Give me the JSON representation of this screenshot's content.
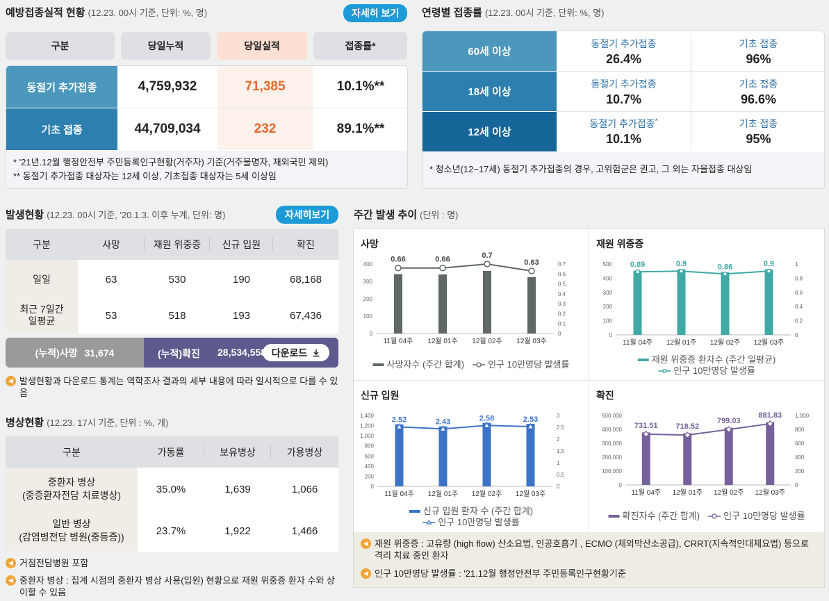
{
  "vacc": {
    "title": "예방접종실적 현황",
    "sub": "(12.23. 00시 기준, 단위: %, 명)",
    "more": "자세히 보기",
    "headers": [
      "구분",
      "당일누적",
      "당일실적",
      "접종률*"
    ],
    "rows": [
      {
        "label": "동절기 추가접종",
        "cum": "4,759,932",
        "today": "71,385",
        "rate": "10.1%**"
      },
      {
        "label": "기초 접종",
        "cum": "44,709,034",
        "today": "232",
        "rate": "89.1%**"
      }
    ],
    "notes": [
      "* '21년.12월 행정안전부 주민등록인구현황(거주자) 기준(거주불명자, 재외국민 제외)",
      "** 동절기 추가접종 대상자는 12세 이상, 기초접종 대상자는 5세 이상임"
    ]
  },
  "age": {
    "title": "연령별 접종률",
    "sub": "(12.23. 00시 기준, 단위: %, 명)",
    "rows": [
      {
        "label": "60세 이상",
        "a_label": "동절기 추가접종",
        "a_val": "26.4%",
        "b_label": "기초 접종",
        "b_val": "96%"
      },
      {
        "label": "18세 이상",
        "a_label": "동절기 추가접종",
        "a_val": "10.7%",
        "b_label": "기초 접종",
        "b_val": "96.6%"
      },
      {
        "label": "12세 이상",
        "a_label": "동절기 추가접종",
        "a_sup": "*",
        "a_val": "10.1%",
        "b_label": "기초 접종",
        "b_val": "95%"
      }
    ],
    "note": "* 청소년(12~17세) 동절기 추가접종의 경우, 고위험군은 권고, 그 외는 자율접종 대상임"
  },
  "occ": {
    "title": "발생현황",
    "sub": "(12.23. 00시 기준, '20.1.3. 이후 누계, 단위: 명)",
    "more": "자세히보기",
    "headers": [
      "구분",
      "사망",
      "재원 위중증",
      "신규 입원",
      "확진"
    ],
    "rows": [
      {
        "label": "일일",
        "v": [
          "63",
          "530",
          "190",
          "68,168"
        ]
      },
      {
        "label": "최근 7일간\n일평균",
        "v": [
          "53",
          "518",
          "193",
          "67,436"
        ]
      }
    ],
    "cum_death_label": "(누적)사망",
    "cum_death": "31,674",
    "cum_conf_label": "(누적)확진",
    "cum_conf": "28,534,558",
    "download": "다운로드",
    "note": "발생현황과 다운로드 통계는 역학조사 결과의 세부 내용에 따라 일시적으로 다를 수 있음"
  },
  "beds": {
    "title": "병상현황",
    "sub": "(12.23. 17시 기준, 단위 : %, 개)",
    "headers": [
      "구분",
      "가동률",
      "보유병상",
      "가용병상"
    ],
    "rows": [
      {
        "label": "중환자 병상\n(중증환자전담 치료병상)",
        "v": [
          "35.0%",
          "1,639",
          "1,066"
        ]
      },
      {
        "label": "일반 병상\n(감염병전담 병원(중등증))",
        "v": [
          "23.7%",
          "1,922",
          "1,466"
        ]
      }
    ],
    "notes": [
      "거점전담병원 포함",
      "중환자 병상 : 집계 시점의 중환자 병상 사용(입원) 현황으로 재원 위중증 환자 수와 상이할 수 있음"
    ]
  },
  "weekly": {
    "title": "주간 발생 추이",
    "sub": "(단위 : 명)",
    "notes": [
      "재원 위중증 : 고유량 (high flow) 산소요법, 인공호흡기 , ECMO (체외막산소공급), CRRT(지속적인대체요법) 등으로 격리 치료 중인 환자",
      "인구 10만명당 발생률 : '21.12월 행정안전부 주민등록인구현황기준"
    ]
  },
  "chart_data": [
    {
      "type": "bar",
      "title": "사망",
      "categories": [
        "11월 04주",
        "12월 01주",
        "12월 02주",
        "12월 03주"
      ],
      "series": [
        {
          "name": "사망자수 (주간 합계)",
          "type": "bar",
          "values": [
            342,
            340,
            360,
            325
          ],
          "color": "#5f6867"
        },
        {
          "name": "인구 10만명당 발생률",
          "type": "line",
          "values": [
            0.66,
            0.66,
            0.7,
            0.63
          ],
          "color": "#5f6867"
        }
      ],
      "ylim": [
        0,
        400
      ],
      "yticks": [
        "0",
        "100",
        "200",
        "300",
        "400"
      ],
      "y2lim": [
        0,
        0.7
      ],
      "y2ticks": [
        "0",
        "0.1",
        "0.2",
        "0.3",
        "0.4",
        "0.5",
        "0.6",
        "0.7"
      ],
      "labels": [
        "0.66",
        "0.66",
        "0.7",
        "0.63"
      ]
    },
    {
      "type": "bar",
      "title": "재원 위중증",
      "categories": [
        "11월 04주",
        "12월 01주",
        "12월 02주",
        "12월 03주"
      ],
      "series": [
        {
          "name": "재원 위중증 환자수 (주간 일평균)",
          "type": "bar",
          "values": [
            452,
            462,
            442,
            462
          ],
          "color": "#3fa9a5"
        },
        {
          "name": "인구 10만명당 발생률",
          "type": "line",
          "values": [
            0.89,
            0.9,
            0.86,
            0.9
          ],
          "color": "#3fa9a5"
        }
      ],
      "ylim": [
        0,
        500
      ],
      "yticks": [
        "0",
        "100",
        "200",
        "300",
        "400",
        "500"
      ],
      "y2lim": [
        0,
        1
      ],
      "y2ticks": [
        "0",
        "0.2",
        "0.4",
        "0.6",
        "0.8",
        "1"
      ],
      "labels": [
        "0.89",
        "0.9",
        "0.86",
        "0.9"
      ]
    },
    {
      "type": "bar",
      "title": "신규 입원",
      "categories": [
        "11월 04주",
        "12월 01주",
        "12월 02주",
        "12월 03주"
      ],
      "series": [
        {
          "name": "신규 입원 환자 수 (주간 합계)",
          "type": "bar",
          "values": [
            1225,
            1185,
            1255,
            1235
          ],
          "color": "#3d73c6"
        },
        {
          "name": "인구 10만명당 발생률",
          "type": "line",
          "values": [
            2.52,
            2.43,
            2.58,
            2.53
          ],
          "color": "#3d73c6"
        }
      ],
      "ylim": [
        0,
        1400
      ],
      "yticks": [
        "0",
        "200",
        "400",
        "600",
        "800",
        "1,000",
        "1,200",
        "1,400"
      ],
      "y2lim": [
        0,
        3
      ],
      "y2ticks": [
        "0",
        "0.5",
        "1",
        "1.5",
        "2",
        "2.5",
        "3"
      ],
      "labels": [
        "2.52",
        "2.43",
        "2.58",
        "2.53"
      ]
    },
    {
      "type": "bar",
      "title": "확진",
      "categories": [
        "11월 04주",
        "12월 01주",
        "12월 02주",
        "12월 03주"
      ],
      "series": [
        {
          "name": "확진자수 (주간 합계)",
          "type": "bar",
          "values": [
            378000,
            372000,
            412000,
            452000
          ],
          "color": "#76619b"
        },
        {
          "name": "인구 10만명당 발생률",
          "type": "line",
          "values": [
            731.51,
            718.52,
            799.03,
            881.83
          ],
          "color": "#76619b"
        }
      ],
      "ylim": [
        0,
        500000
      ],
      "yticks": [
        "0",
        "100,000",
        "200,000",
        "300,000",
        "400,000",
        "500,000"
      ],
      "y2lim": [
        0,
        1000
      ],
      "y2ticks": [
        "0",
        "200",
        "400",
        "600",
        "800",
        "1,000"
      ],
      "labels": [
        "731.51",
        "718.52",
        "799.03",
        "881.83"
      ]
    }
  ]
}
